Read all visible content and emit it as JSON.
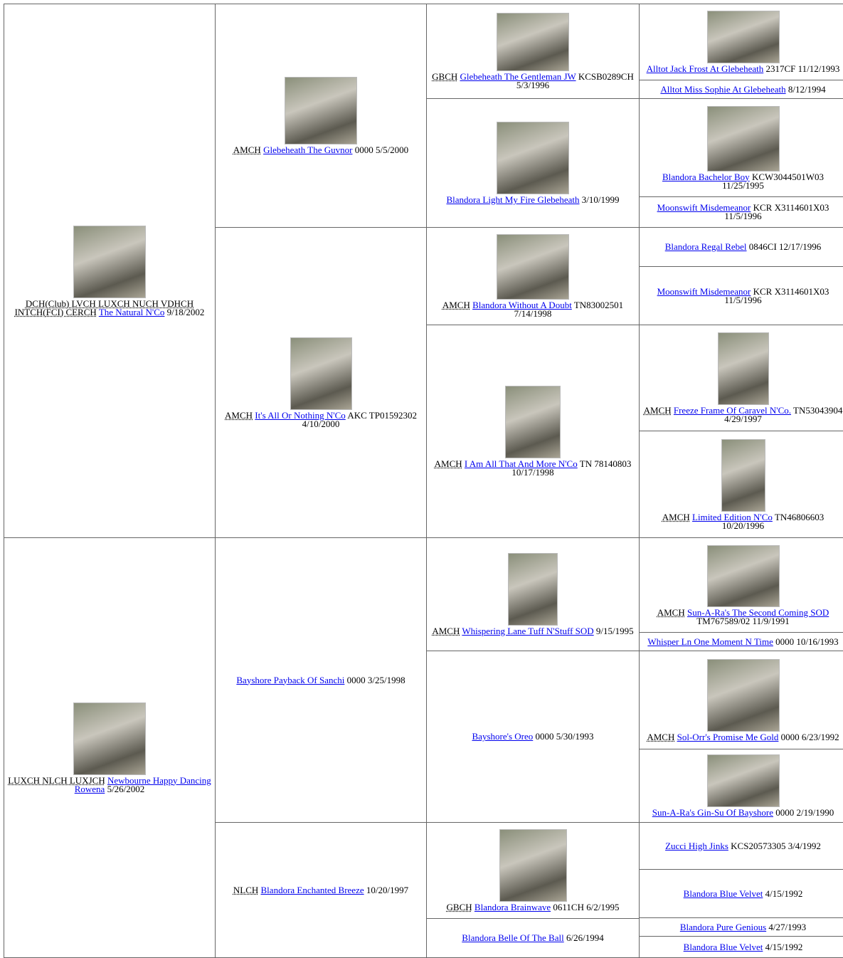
{
  "pedigree": {
    "columns": [
      [
        {
          "title": "DCH(Club) LVCH LUXCH NUCH VDHCH INTCH(FCI) CERCH",
          "name": "The Natural N'Co",
          "details": "9/18/2002"
        },
        {
          "title": "LUXCH NLCH LUXJCH",
          "name": "Newbourne Happy Dancing Rowena",
          "details": "5/26/2002"
        }
      ],
      [
        {
          "title": "AMCH",
          "name": "Glebeheath The Guvnor",
          "details": "0000 5/5/2000"
        },
        {
          "title": "AMCH",
          "name": "It's All Or Nothing N'Co",
          "details": "AKC TP01592302 4/10/2000"
        },
        {
          "name": "Bayshore Payback Of Sanchi",
          "details": "0000 3/25/1998"
        },
        {
          "title": "NLCH",
          "name": "Blandora Enchanted Breeze",
          "details": "10/20/1997"
        }
      ],
      [
        {
          "title": "GBCH",
          "name": "Glebeheath The Gentleman JW",
          "details": "KCSB0289CH 5/3/1996"
        },
        {
          "name": "Blandora Light My Fire Glebeheath",
          "details": "3/10/1999"
        },
        {
          "title": "AMCH",
          "name": "Blandora Without A Doubt",
          "details": "TN83002501 7/14/1998"
        },
        {
          "title": "AMCH",
          "name": "I Am All That And More N'Co",
          "details": "TN 78140803 10/17/1998"
        },
        {
          "title": "AMCH",
          "name": "Whispering Lane Tuff N'Stuff SOD",
          "details": "9/15/1995"
        },
        {
          "name": "Bayshore's Oreo",
          "details": "0000 5/30/1993"
        },
        {
          "title": "GBCH",
          "name": "Blandora Brainwave",
          "details": "0611CH 6/2/1995"
        },
        {
          "name": "Blandora Belle Of The Ball",
          "details": "6/26/1994"
        }
      ],
      [
        {
          "name": "Alltot Jack Frost At Glebeheath",
          "details": "2317CF 11/12/1993"
        },
        {
          "name": "Alltot Miss Sophie At Glebeheath",
          "details": "8/12/1994"
        },
        {
          "name": "Blandora Bachelor Boy",
          "details": "KCW3044501W03 11/25/1995"
        },
        {
          "name": "Moonswift Misdemeanor",
          "details": "KCR X3114601X03 11/5/1996"
        },
        {
          "name": "Blandora Regal Rebel",
          "details": "0846CI 12/17/1996"
        },
        {
          "name": "Moonswift Misdemeanor",
          "details": "KCR X3114601X03 11/5/1996"
        },
        {
          "title": "AMCH",
          "name": "Freeze Frame Of Caravel N'Co.",
          "details": "TN53043904 4/29/1997"
        },
        {
          "title": "AMCH",
          "name": "Limited Edition N'Co",
          "details": "TN46806603 10/20/1996"
        },
        {
          "title": "AMCH",
          "name": "Sun-A-Ra's The Second Coming SOD",
          "details": "TM767589/02 11/9/1991"
        },
        {
          "name": "Whisper Ln One Moment N Time",
          "details": "0000 10/16/1993"
        },
        {
          "title": "AMCH",
          "name": "Sol-Orr's Promise Me Gold",
          "details": "0000 6/23/1992"
        },
        {
          "name": "Sun-A-Ra's Gin-Su Of Bayshore",
          "details": "0000 2/19/1990"
        },
        {
          "name": "Zucci High Jinks",
          "details": "KCS20573305 3/4/1992"
        },
        {
          "name": "Blandora Blue Velvet",
          "details": "4/15/1992"
        },
        {
          "name": "Blandora Pure Genious",
          "details": "4/27/1993"
        },
        {
          "name": "Blandora Blue Velvet",
          "details": "4/15/1992"
        }
      ]
    ]
  }
}
